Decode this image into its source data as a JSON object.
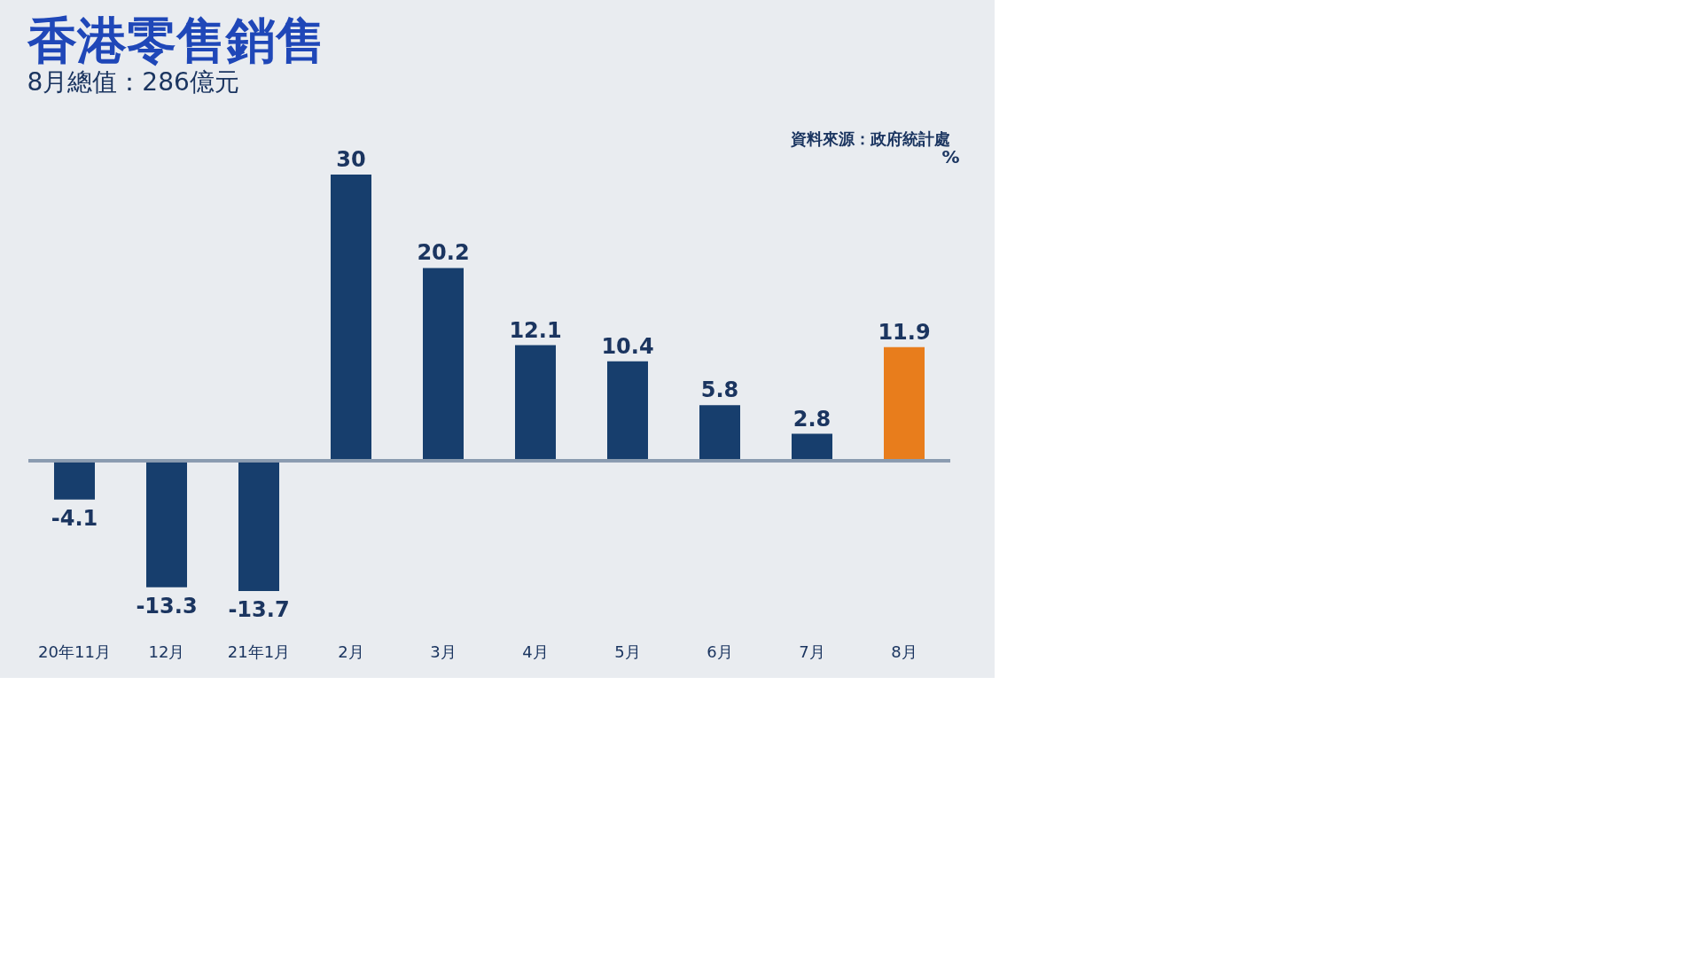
{
  "chart_data": {
    "type": "bar",
    "title": "香港零售銷售",
    "subtitle": "8月總值：286億元",
    "ylabel": "%",
    "annotations": [
      "資料來源：政府統計處"
    ],
    "categories": [
      "20年11月",
      "12月",
      "21年1月",
      "2月",
      "3月",
      "4月",
      "5月",
      "6月",
      "7月",
      "8月"
    ],
    "values": [
      -4.1,
      -13.3,
      -13.7,
      30,
      20.2,
      12.1,
      10.4,
      5.8,
      2.8,
      11.9
    ],
    "colors": [
      "#173e6d",
      "#173e6d",
      "#173e6d",
      "#173e6d",
      "#173e6d",
      "#173e6d",
      "#173e6d",
      "#173e6d",
      "#173e6d",
      "#e87d1c"
    ],
    "data_labels": true
  }
}
